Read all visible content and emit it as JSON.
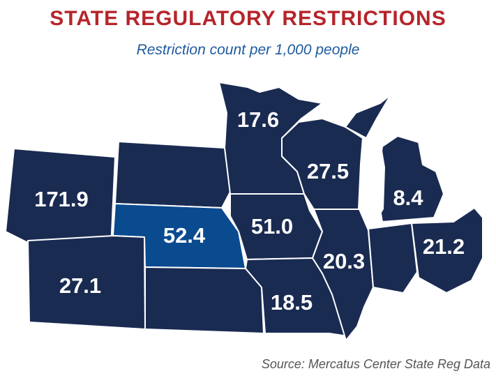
{
  "title": "STATE REGULATORY RESTRICTIONS",
  "subtitle": "Restriction count per 1,000 people",
  "source": "Source: Mercatus Center State Reg Data",
  "colors": {
    "base_fill": "#1a2b52",
    "highlight_fill": "#0a4a8f",
    "title": "#b5252b",
    "subtitle": "#1f5a9e"
  },
  "states": [
    {
      "key": "wyoming",
      "value": "171.9",
      "highlight": false
    },
    {
      "key": "south_dakota",
      "value": "",
      "highlight": false
    },
    {
      "key": "nebraska",
      "value": "52.4",
      "highlight": true
    },
    {
      "key": "colorado",
      "value": "27.1",
      "highlight": false
    },
    {
      "key": "kansas",
      "value": "",
      "highlight": false
    },
    {
      "key": "minnesota",
      "value": "17.6",
      "highlight": false
    },
    {
      "key": "iowa",
      "value": "51.0",
      "highlight": false
    },
    {
      "key": "missouri",
      "value": "18.5",
      "highlight": false
    },
    {
      "key": "wisconsin",
      "value": "27.5",
      "highlight": false
    },
    {
      "key": "illinois",
      "value": "20.3",
      "highlight": false
    },
    {
      "key": "michigan",
      "value": "8.4",
      "highlight": false
    },
    {
      "key": "indiana",
      "value": "",
      "highlight": false
    },
    {
      "key": "ohio",
      "value": "21.2",
      "highlight": false
    }
  ]
}
